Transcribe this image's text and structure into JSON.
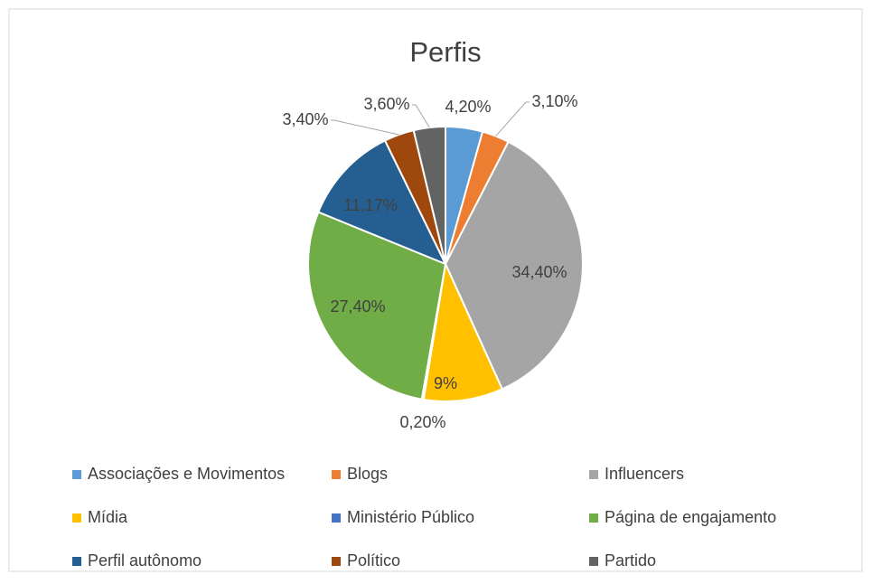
{
  "chart_data": {
    "type": "pie",
    "title": "Perfis",
    "categories": [
      "Associações e Movimentos",
      "Blogs",
      "Influencers",
      "Mídia",
      "Ministério Público",
      "Página de engajamento",
      "Perfil autônomo",
      "Político",
      "Partido"
    ],
    "values": [
      4.2,
      3.1,
      34.4,
      9,
      0.2,
      27.4,
      11.17,
      3.4,
      3.6
    ],
    "value_labels": [
      "4,20%",
      "3,10%",
      "34,40%",
      "9%",
      "0,20%",
      "27,40%",
      "11,17%",
      "3,40%",
      "3,60%"
    ],
    "colors": [
      "#5b9bd5",
      "#ed7d31",
      "#a5a5a5",
      "#ffc000",
      "#4472c4",
      "#70ad47",
      "#255e91",
      "#9e480e",
      "#636363"
    ],
    "legend": "bottom"
  }
}
